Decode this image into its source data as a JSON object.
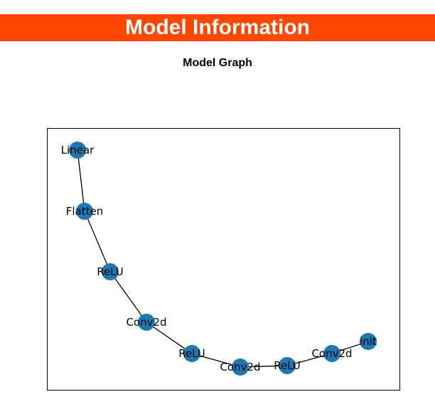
{
  "header": {
    "title": "Model Information",
    "background_color": "#ff4500"
  },
  "graph": {
    "title": "Model Graph",
    "node_color": "#1f77b4",
    "edge_color": "#000000",
    "nodes": [
      "Linear",
      "Flatten",
      "ReLU",
      "Conv2d",
      "ReLU",
      "Conv2d",
      "ReLU",
      "Conv2d",
      "init"
    ]
  }
}
